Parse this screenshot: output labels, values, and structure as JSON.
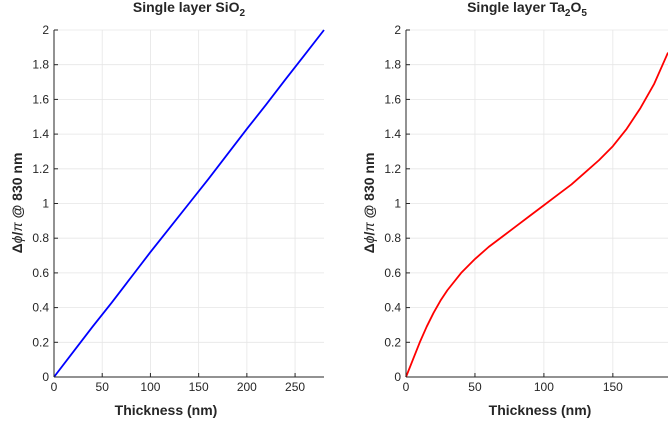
{
  "chart_data": [
    {
      "type": "line",
      "title": "Single layer SiO",
      "title_subscript": "2",
      "xlabel": "Thickness (nm)",
      "ylabel_delta": "Δ",
      "ylabel_phi": "ϕ",
      "ylabel_slash": "/",
      "ylabel_pi": "π",
      "ylabel_tail": " @ 830 nm",
      "xlim": [
        0,
        280
      ],
      "ylim": [
        0,
        2
      ],
      "xticks": [
        0,
        50,
        100,
        150,
        200,
        250
      ],
      "yticks": [
        0,
        0.2,
        0.4,
        0.6,
        0.8,
        1,
        1.2,
        1.4,
        1.6,
        1.8,
        2
      ],
      "grid": true,
      "color": "#0000ff",
      "series": [
        {
          "x": [
            0,
            20,
            40,
            60,
            80,
            100,
            120,
            140,
            160,
            180,
            200,
            220,
            240,
            260,
            280
          ],
          "y": [
            0,
            0.145,
            0.29,
            0.43,
            0.575,
            0.72,
            0.86,
            1.0,
            1.14,
            1.285,
            1.43,
            1.57,
            1.715,
            1.857,
            2.0
          ]
        }
      ]
    },
    {
      "type": "line",
      "title": "Single layer Ta",
      "title_sub1": "2",
      "title_mid": "O",
      "title_sub2": "5",
      "xlabel": "Thickness (nm)",
      "ylabel_delta": "Δ",
      "ylabel_phi": "ϕ",
      "ylabel_slash": "/",
      "ylabel_pi": "π",
      "ylabel_tail": " @ 830 nm",
      "xlim": [
        0,
        190
      ],
      "ylim": [
        0,
        2
      ],
      "xticks": [
        0,
        50,
        100,
        150
      ],
      "yticks": [
        0,
        0.2,
        0.4,
        0.6,
        0.8,
        1,
        1.2,
        1.4,
        1.6,
        1.8,
        2
      ],
      "grid": true,
      "color": "#ff0000",
      "series": [
        {
          "x": [
            0,
            5,
            10,
            15,
            20,
            25,
            30,
            40,
            50,
            60,
            70,
            80,
            90,
            100,
            110,
            120,
            130,
            140,
            150,
            160,
            170,
            180,
            190
          ],
          "y": [
            0,
            0.1,
            0.2,
            0.29,
            0.37,
            0.44,
            0.5,
            0.6,
            0.68,
            0.75,
            0.81,
            0.87,
            0.93,
            0.99,
            1.05,
            1.11,
            1.18,
            1.25,
            1.33,
            1.43,
            1.55,
            1.69,
            1.87
          ]
        }
      ]
    }
  ]
}
